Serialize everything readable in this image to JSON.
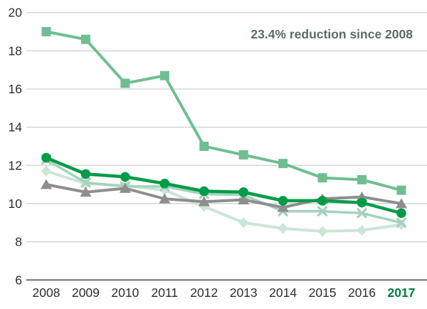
{
  "chart_data": {
    "type": "line",
    "title": "",
    "annotation": "23.4% reduction since 2008",
    "categories": [
      "2008",
      "2009",
      "2010",
      "2011",
      "2012",
      "2013",
      "2014",
      "2015",
      "2016",
      "2017"
    ],
    "x": [
      2008,
      2009,
      2010,
      2011,
      2012,
      2013,
      2014,
      2015,
      2016,
      2017
    ],
    "series": [
      {
        "name": "pale-green-diamond-series",
        "marker": "diamond",
        "color": "#CBE5D7",
        "line_width": 4,
        "values": [
          11.7,
          11.05,
          10.95,
          10.7,
          9.85,
          9.0,
          8.7,
          8.55,
          8.6,
          8.9
        ]
      },
      {
        "name": "light-green-x-series",
        "marker": "x",
        "color": "#A3D3BA",
        "line_width": 3.5,
        "values": [
          12.3,
          11.1,
          10.9,
          10.9,
          10.5,
          10.45,
          9.6,
          9.6,
          9.5,
          9.0
        ]
      },
      {
        "name": "medium-green-square-series",
        "marker": "square",
        "color": "#6FBE92",
        "line_width": 4,
        "values": [
          19.0,
          18.6,
          16.3,
          16.7,
          13.0,
          12.55,
          12.1,
          11.35,
          11.25,
          10.7
        ]
      },
      {
        "name": "gray-triangle-series",
        "marker": "triangle",
        "color": "#8E8E8E",
        "line_width": 4,
        "values": [
          11.0,
          10.6,
          10.8,
          10.25,
          10.1,
          10.2,
          9.8,
          10.25,
          10.35,
          10.0
        ]
      },
      {
        "name": "dark-green-circle-series",
        "marker": "circle",
        "color": "#009B48",
        "line_width": 4.5,
        "values": [
          12.4,
          11.55,
          11.4,
          11.05,
          10.65,
          10.6,
          10.15,
          10.15,
          10.05,
          9.5
        ]
      }
    ],
    "yticks": [
      20,
      18,
      16,
      14,
      12,
      10,
      8,
      6
    ],
    "ylim": [
      6,
      20
    ],
    "grid": true,
    "legend": "none",
    "styles": {
      "grid_color": "#D8D8D8",
      "baseline_color": "#7A7A7A",
      "tick_label_color": "#2E2E2E",
      "last_xlabel_color": "#007D3C",
      "annotation_color": "#586D6C",
      "background": "#FFFFFF"
    }
  }
}
